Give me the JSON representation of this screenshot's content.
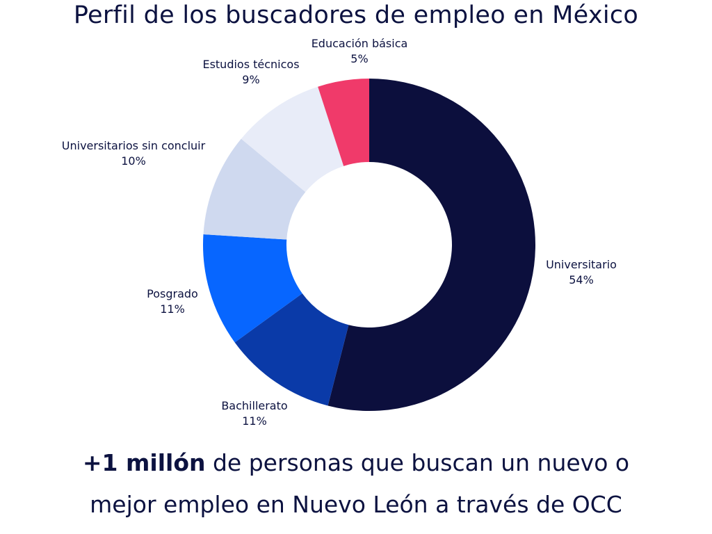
{
  "title": "Perfil de los buscadores de empleo en México",
  "footer": {
    "highlight": "+1 millón",
    "line1_rest": " de personas que buscan un nuevo o",
    "line2": "mejor empleo en Nuevo León a través de OCC"
  },
  "chart_data": {
    "type": "pie",
    "title": "Perfil de los buscadores de empleo en México",
    "donut": true,
    "categories": [
      "Universitario",
      "Bachillerato",
      "Posgrado",
      "Universitarios sin concluir",
      "Estudios técnicos",
      "Educación básica"
    ],
    "values": [
      54,
      11,
      11,
      10,
      9,
      5
    ],
    "labels": [
      "54%",
      "11%",
      "11%",
      "10%",
      "9%",
      "5%"
    ],
    "colors": [
      "#0c0f3d",
      "#0a3aa8",
      "#0766ff",
      "#cfd9ef",
      "#e8ecf8",
      "#f03a6a"
    ]
  }
}
